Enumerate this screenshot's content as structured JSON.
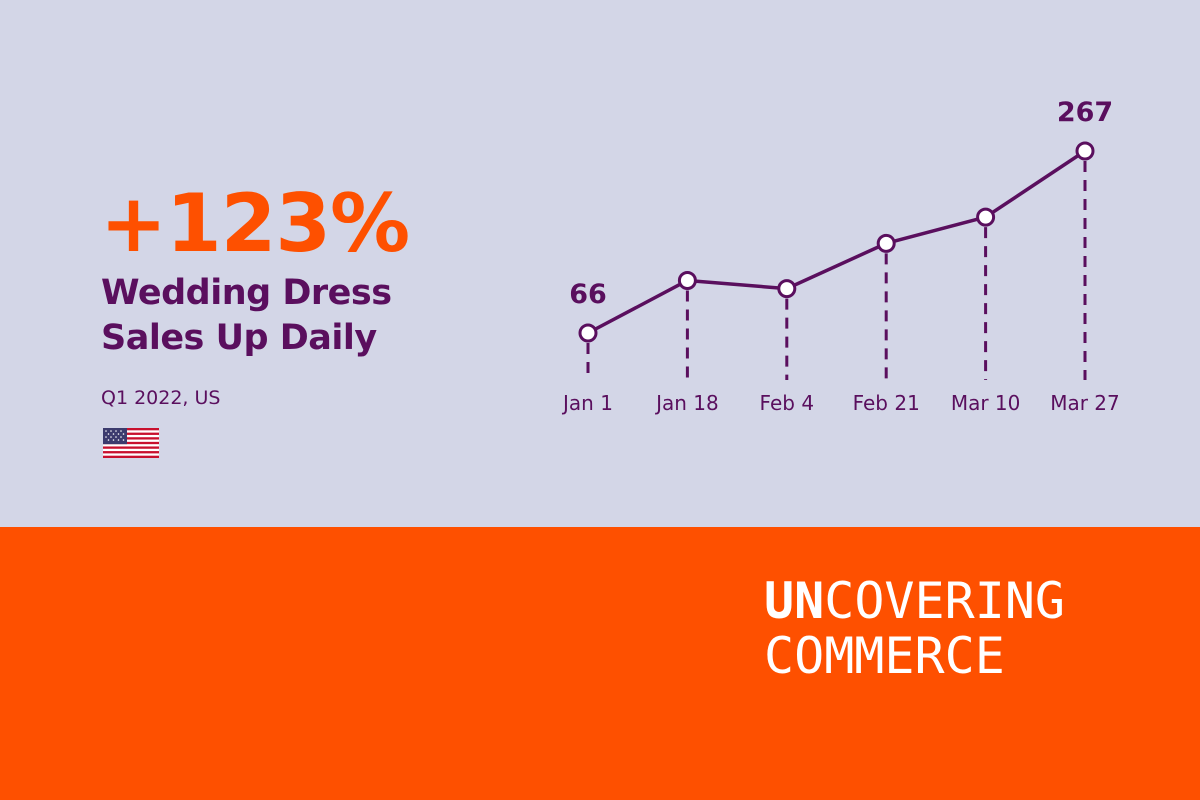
{
  "headline": "+123%",
  "subtitle_lines": [
    "Wedding Dress",
    "Sales Up Daily"
  ],
  "period": "Q1 2022, US",
  "flag_icon": "us-flag-icon",
  "brand": {
    "line1_bold": "UN",
    "line1_rest": "COVERING",
    "line2": "COMMERCE"
  },
  "colors": {
    "background_top": "#d3d6e7",
    "background_bottom": "#fe5000",
    "accent_orange": "#fe5000",
    "purple": "#5a0f5e",
    "white": "#ffffff"
  },
  "chart_data": {
    "type": "line",
    "categories": [
      "Jan 1",
      "Jan 18",
      "Feb 4",
      "Feb 21",
      "Mar 10",
      "Mar 27"
    ],
    "values": [
      66,
      124,
      115,
      165,
      194,
      267
    ],
    "data_labels": [
      {
        "index": 0,
        "text": "66"
      },
      {
        "index": 5,
        "text": "267"
      }
    ],
    "grid": false,
    "markers": "hollow-circle",
    "drop_lines": "dashed"
  }
}
